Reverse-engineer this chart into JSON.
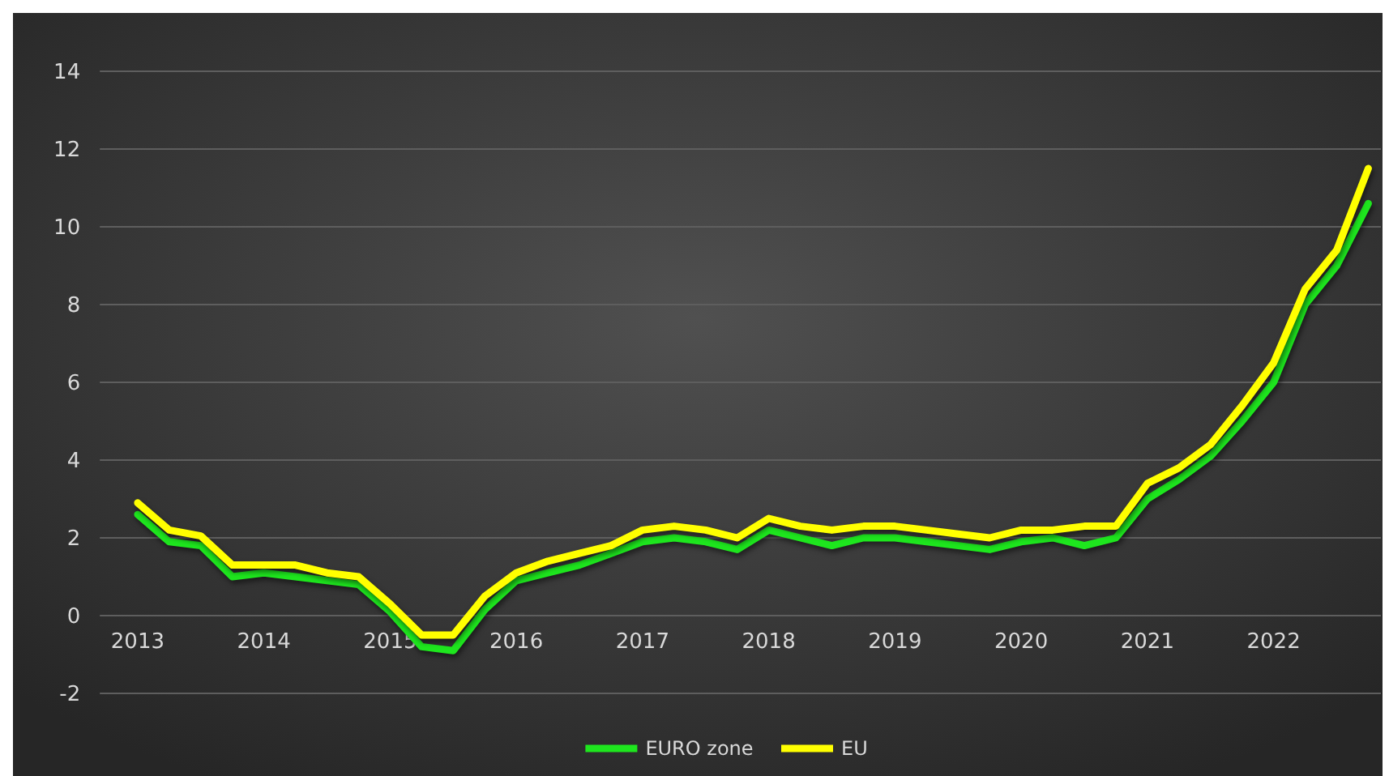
{
  "chart_data": {
    "type": "line",
    "x": [
      2013,
      2013.25,
      2013.5,
      2013.75,
      2014,
      2014.25,
      2014.5,
      2014.75,
      2015,
      2015.25,
      2015.5,
      2015.75,
      2016,
      2016.25,
      2016.5,
      2016.75,
      2017,
      2017.25,
      2017.5,
      2017.75,
      2018,
      2018.25,
      2018.5,
      2018.75,
      2019,
      2019.25,
      2019.5,
      2019.75,
      2020,
      2020.25,
      2020.5,
      2020.75,
      2021,
      2021.25,
      2021.5,
      2021.75,
      2022,
      2022.25,
      2022.5,
      2022.75
    ],
    "series": [
      {
        "name": "EURO zone",
        "color": "#1ee61e",
        "values": [
          2.6,
          1.9,
          1.8,
          1.0,
          1.1,
          1.0,
          0.9,
          0.8,
          0.1,
          -0.8,
          -0.9,
          0.15,
          0.9,
          1.1,
          1.3,
          1.6,
          1.9,
          2.0,
          1.9,
          1.7,
          2.2,
          2.0,
          1.8,
          2.0,
          2.0,
          1.9,
          1.8,
          1.7,
          1.9,
          2.0,
          1.8,
          2.0,
          3.0,
          3.5,
          4.1,
          5.0,
          6.0,
          8.0,
          9.0,
          10.6
        ]
      },
      {
        "name": "EU",
        "color": "#ffff00",
        "values": [
          2.9,
          2.2,
          2.05,
          1.3,
          1.3,
          1.3,
          1.1,
          1.0,
          0.3,
          -0.5,
          -0.5,
          0.5,
          1.1,
          1.4,
          1.6,
          1.8,
          2.2,
          2.3,
          2.2,
          2.0,
          2.5,
          2.3,
          2.2,
          2.3,
          2.3,
          2.2,
          2.1,
          2.0,
          2.2,
          2.2,
          2.3,
          2.3,
          3.4,
          3.8,
          4.4,
          5.4,
          6.5,
          8.4,
          9.4,
          11.5
        ]
      }
    ],
    "xlim": [
      2012.7,
      2022.85
    ],
    "xticks": [
      2013,
      2014,
      2015,
      2016,
      2017,
      2018,
      2019,
      2020,
      2021,
      2022
    ],
    "ylim": [
      -2,
      14
    ],
    "yticks": [
      -2,
      0,
      2,
      4,
      6,
      8,
      10,
      12,
      14
    ],
    "grid": "y",
    "legend": "bottom",
    "marker": "none",
    "line_style": "solid"
  }
}
